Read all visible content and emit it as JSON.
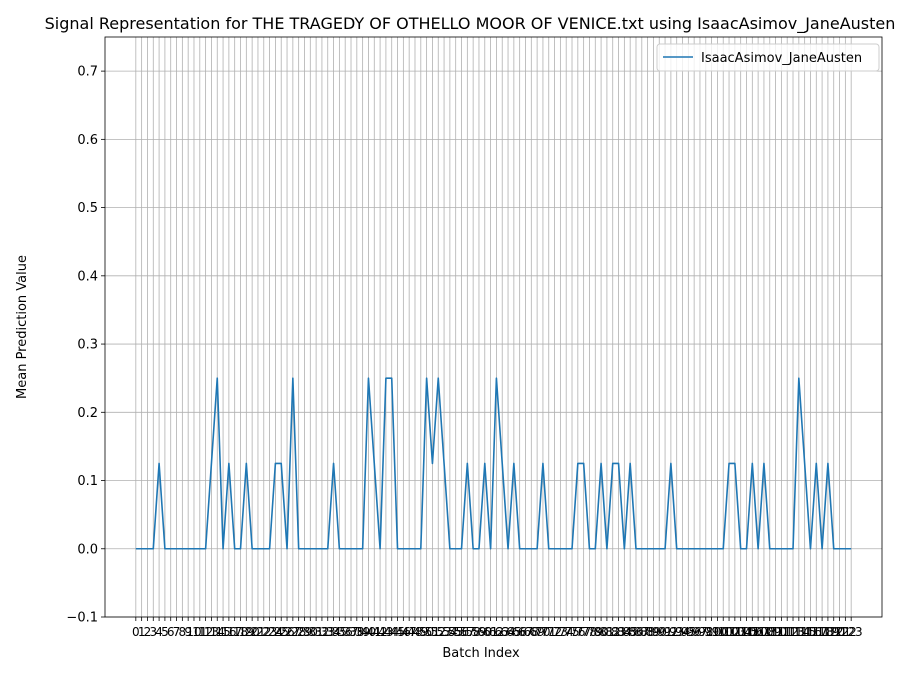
{
  "chart_data": {
    "type": "line",
    "title": "Signal Representation for THE TRAGEDY OF OTHELLO MOOR OF VENICE.txt using IsaacAsimov_JaneAusten",
    "xlabel": "Batch Index",
    "ylabel": "Mean Prediction Value",
    "xlim": [
      -5.3,
      128.3
    ],
    "ylim": [
      -0.1,
      0.75
    ],
    "yticks": [
      -0.1,
      0.0,
      0.1,
      0.2,
      0.3,
      0.4,
      0.5,
      0.6,
      0.7
    ],
    "ytick_labels": [
      "−0.1",
      "0.0",
      "0.1",
      "0.2",
      "0.3",
      "0.4",
      "0.5",
      "0.6",
      "0.7"
    ],
    "x_tick_count": 124,
    "grid": true,
    "legend_position": "top-right",
    "colors": {
      "series": "#1f77b4",
      "grid": "#b0b0b0",
      "axes": "#000000"
    },
    "series": [
      {
        "name": "IsaacAsimov_JaneAusten",
        "values": [
          0,
          0,
          0,
          0,
          0.125,
          0,
          0,
          0,
          0,
          0,
          0,
          0,
          0,
          0.125,
          0.25,
          0,
          0.125,
          0,
          0,
          0.125,
          0,
          0,
          0,
          0,
          0.125,
          0.125,
          0,
          0.25,
          0,
          0,
          0,
          0,
          0,
          0,
          0.125,
          0,
          0,
          0,
          0,
          0,
          0.25,
          0.125,
          0,
          0.25,
          0.25,
          0,
          0,
          0,
          0,
          0,
          0.25,
          0.125,
          0.25,
          0.125,
          0,
          0,
          0,
          0.125,
          0,
          0,
          0.125,
          0,
          0.25,
          0.125,
          0,
          0.125,
          0,
          0,
          0,
          0,
          0.125,
          0,
          0,
          0,
          0,
          0,
          0.125,
          0.125,
          0,
          0,
          0.125,
          0,
          0.125,
          0.125,
          0,
          0.125,
          0,
          0,
          0,
          0,
          0,
          0,
          0.125,
          0,
          0,
          0,
          0,
          0,
          0,
          0,
          0,
          0,
          0.125,
          0.125,
          0,
          0,
          0.125,
          0,
          0.125,
          0,
          0,
          0,
          0,
          0,
          0.25,
          0.125,
          0,
          0.125,
          0,
          0.125,
          0,
          0,
          0,
          0
        ]
      }
    ]
  }
}
